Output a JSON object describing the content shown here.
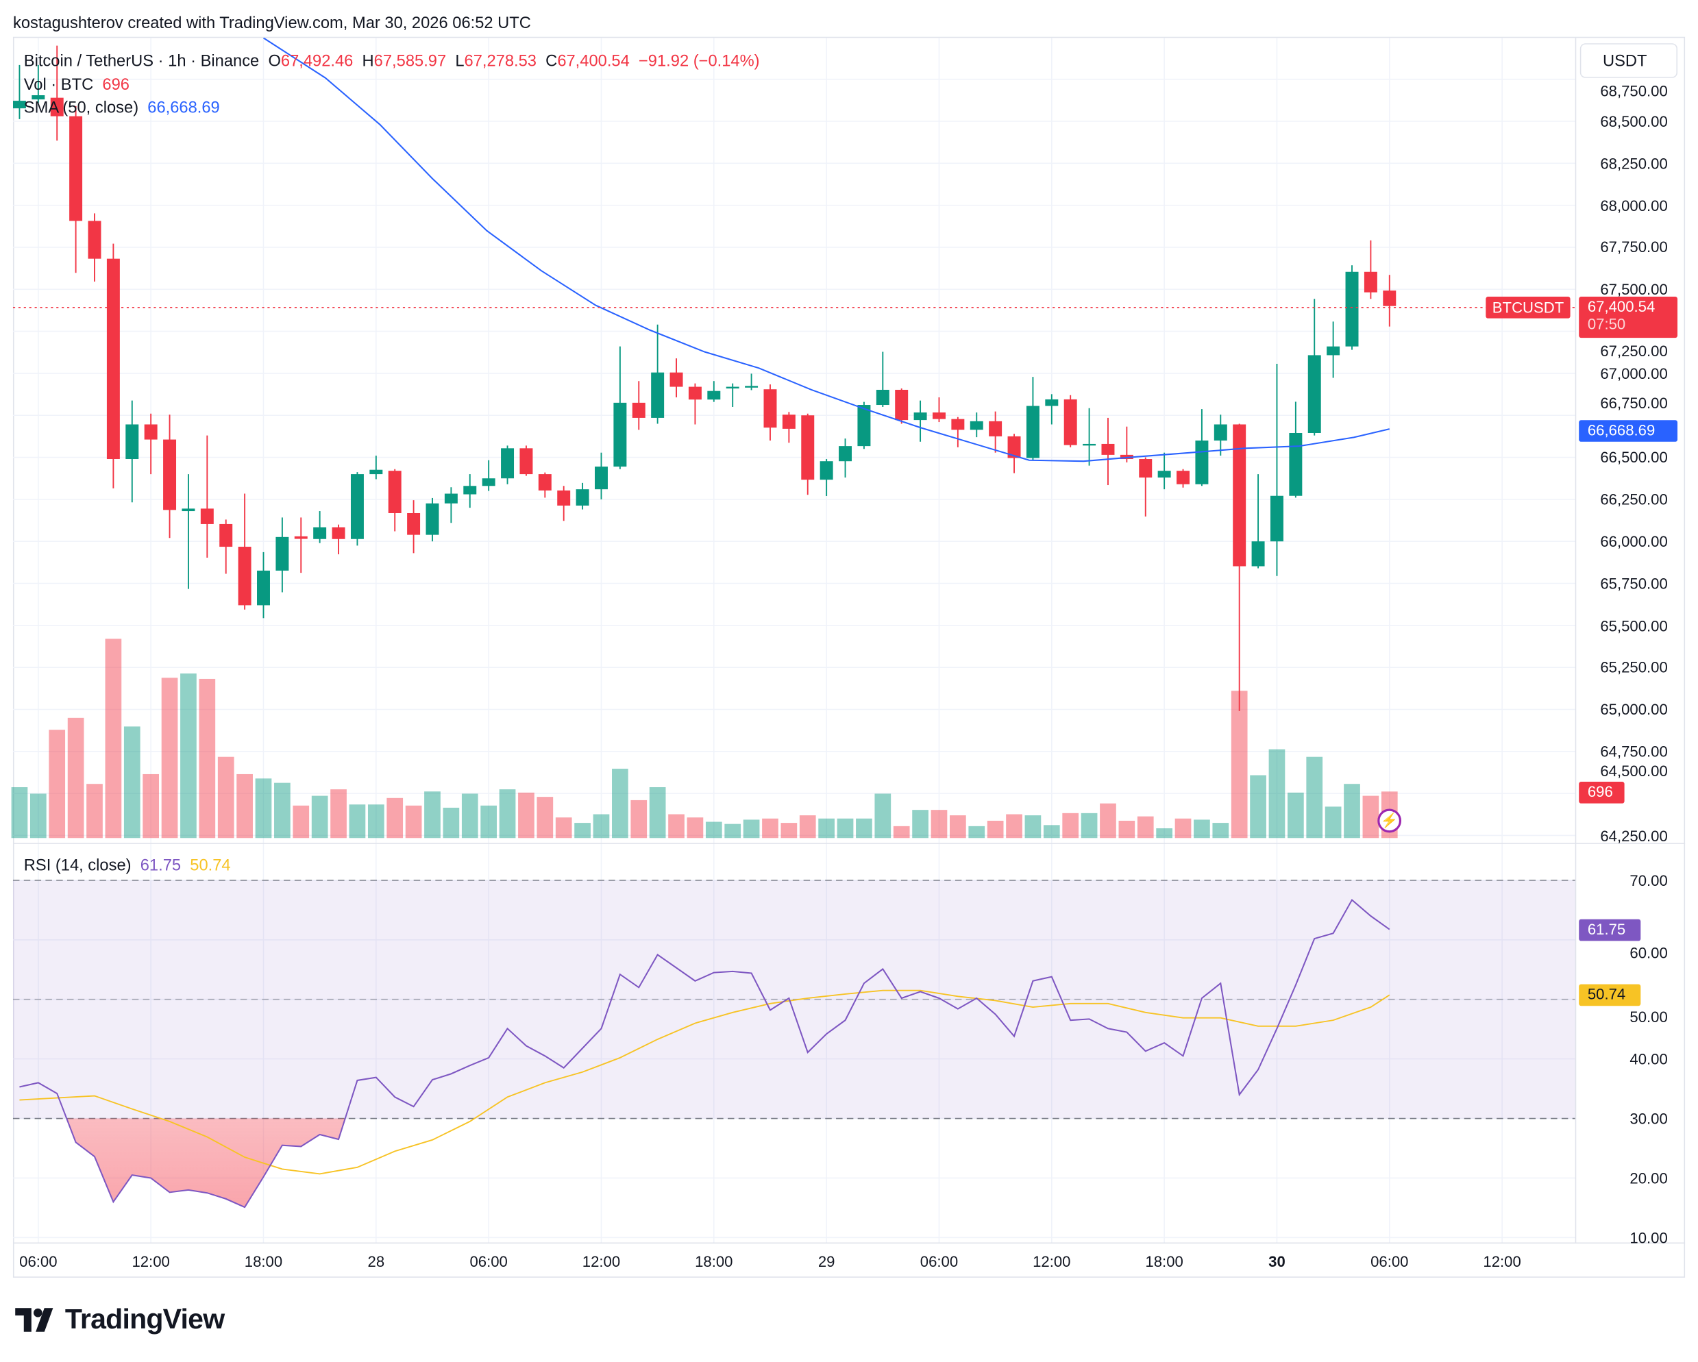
{
  "credit": "kostagushterov created with TradingView.com, Mar 30, 2026 06:52 UTC",
  "symbol_legend": {
    "title": "Bitcoin / TetherUS · 1h · Binance",
    "o_label": "O",
    "o": "67,492.46",
    "h_label": "H",
    "h": "67,585.97",
    "l_label": "L",
    "l": "67,278.53",
    "c_label": "C",
    "c": "67,400.54",
    "change": "−91.92 (−0.14%)"
  },
  "vol_legend": {
    "label": "Vol · BTC",
    "value": "696"
  },
  "sma_legend": {
    "label": "SMA (50, close)",
    "value": "66,668.69"
  },
  "rsi_legend": {
    "label": "RSI (14, close)",
    "value": "61.75",
    "ma_value": "50.74"
  },
  "currency_button": "USDT",
  "price_labels": {
    "symbol": "BTCUSDT",
    "last": "67,400.54",
    "countdown": "07:50",
    "sma": "66,668.69",
    "volume": "696",
    "rsi": "61.75",
    "rsi_ma": "50.74"
  },
  "price_axis": [
    "68,750.00",
    "68,500.00",
    "68,250.00",
    "68,000.00",
    "67,750.00",
    "67,500.00",
    "67,250.00",
    "67,000.00",
    "66,750.00",
    "66,500.00",
    "66,250.00",
    "66,000.00",
    "65,750.00",
    "65,500.00",
    "65,250.00",
    "65,000.00",
    "64,750.00",
    "64,500.00",
    "64,250.00"
  ],
  "rsi_axis": [
    "70.00",
    "60.00",
    "50.00",
    "40.00",
    "30.00",
    "20.00",
    "10.00"
  ],
  "time_axis": [
    {
      "label": "06:00",
      "bold": false
    },
    {
      "label": "12:00",
      "bold": false
    },
    {
      "label": "18:00",
      "bold": false
    },
    {
      "label": "28",
      "bold": false
    },
    {
      "label": "06:00",
      "bold": false
    },
    {
      "label": "12:00",
      "bold": false
    },
    {
      "label": "18:00",
      "bold": false
    },
    {
      "label": "29",
      "bold": false
    },
    {
      "label": "06:00",
      "bold": false
    },
    {
      "label": "12:00",
      "bold": false
    },
    {
      "label": "18:00",
      "bold": false
    },
    {
      "label": "30",
      "bold": true
    },
    {
      "label": "06:00",
      "bold": false
    },
    {
      "label": "12:00",
      "bold": false
    }
  ],
  "logo_text": "TradingView",
  "icons": {
    "alert": "lightning-icon",
    "logo": "tradingview-logo-icon"
  },
  "colors": {
    "up": "#089981",
    "down": "#f23645",
    "sma": "#2962ff",
    "rsi": "#7e57c2",
    "rsi_ma": "#f7c325"
  },
  "chart_data": {
    "type": "candlestick",
    "interval": "1h",
    "first_bar": "Mar 27 05:00",
    "ylim": [
      64250,
      68750
    ],
    "ohlc": [
      [
        68577,
        68835,
        68513,
        68622
      ],
      [
        68630,
        68835,
        68610,
        68655
      ],
      [
        68640,
        68950,
        68385,
        68530
      ],
      [
        68530,
        68590,
        67598,
        67907
      ],
      [
        67907,
        67952,
        67546,
        67682
      ],
      [
        67682,
        67772,
        66316,
        66490
      ],
      [
        66490,
        66838,
        66232,
        66696
      ],
      [
        66696,
        66760,
        66400,
        66606
      ],
      [
        66606,
        66754,
        66020,
        66187
      ],
      [
        66180,
        66400,
        65717,
        66195
      ],
      [
        66195,
        66630,
        65903,
        66103
      ],
      [
        66103,
        66130,
        65807,
        65968
      ],
      [
        65968,
        66284,
        65594,
        65620
      ],
      [
        65620,
        65936,
        65543,
        65826
      ],
      [
        65826,
        66142,
        65697,
        66026
      ],
      [
        66030,
        66142,
        65813,
        66015
      ],
      [
        66014,
        66180,
        65990,
        66084
      ],
      [
        66084,
        66100,
        65923,
        66014
      ],
      [
        66014,
        66412,
        65975,
        66400
      ],
      [
        66400,
        66510,
        66370,
        66426
      ],
      [
        66420,
        66430,
        66060,
        66168
      ],
      [
        66168,
        66245,
        65930,
        66039
      ],
      [
        66039,
        66258,
        66000,
        66226
      ],
      [
        66226,
        66322,
        66110,
        66284
      ],
      [
        66280,
        66400,
        66200,
        66330
      ],
      [
        66330,
        66483,
        66300,
        66375
      ],
      [
        66375,
        66570,
        66340,
        66554
      ],
      [
        66554,
        66570,
        66390,
        66400
      ],
      [
        66400,
        66410,
        66260,
        66303
      ],
      [
        66303,
        66330,
        66122,
        66213
      ],
      [
        66213,
        66348,
        66190,
        66310
      ],
      [
        66310,
        66528,
        66250,
        66445
      ],
      [
        66445,
        67160,
        66430,
        66825
      ],
      [
        66825,
        66954,
        66664,
        66735
      ],
      [
        66735,
        67290,
        66700,
        67005
      ],
      [
        67005,
        67089,
        66857,
        66920
      ],
      [
        66920,
        66940,
        66696,
        66844
      ],
      [
        66844,
        66954,
        66830,
        66895
      ],
      [
        66910,
        66940,
        66800,
        66920
      ],
      [
        66915,
        66998,
        66900,
        66925
      ],
      [
        66905,
        66934,
        66600,
        66677
      ],
      [
        66754,
        66770,
        66587,
        66670
      ],
      [
        66750,
        66760,
        66277,
        66367
      ],
      [
        66367,
        66490,
        66270,
        66477
      ],
      [
        66477,
        66612,
        66380,
        66567
      ],
      [
        66567,
        66830,
        66550,
        66812
      ],
      [
        66812,
        67128,
        66800,
        66902
      ],
      [
        66902,
        66910,
        66700,
        66722
      ],
      [
        66722,
        66838,
        66593,
        66767
      ],
      [
        66767,
        66857,
        66710,
        66728
      ],
      [
        66728,
        66740,
        66560,
        66664
      ],
      [
        66664,
        66767,
        66620,
        66715
      ],
      [
        66715,
        66773,
        66528,
        66625
      ],
      [
        66625,
        66640,
        66406,
        66496
      ],
      [
        66496,
        66979,
        66480,
        66806
      ],
      [
        66806,
        66876,
        66696,
        66845
      ],
      [
        66845,
        66870,
        66560,
        66573
      ],
      [
        66573,
        66793,
        66451,
        66580
      ],
      [
        66580,
        66735,
        66335,
        66515
      ],
      [
        66515,
        66683,
        66470,
        66490
      ],
      [
        66490,
        66500,
        66148,
        66380
      ],
      [
        66380,
        66528,
        66310,
        66420
      ],
      [
        66420,
        66430,
        66320,
        66340
      ],
      [
        66340,
        66787,
        66330,
        66600
      ],
      [
        66600,
        66754,
        66510,
        66696
      ],
      [
        66696,
        66700,
        64990,
        65852
      ],
      [
        65852,
        66400,
        65840,
        66000
      ],
      [
        66000,
        67057,
        65794,
        66271
      ],
      [
        66271,
        66831,
        66260,
        66645
      ],
      [
        66645,
        67443,
        66630,
        67108
      ],
      [
        67108,
        67308,
        66973,
        67160
      ],
      [
        67160,
        67643,
        67140,
        67604
      ],
      [
        67604,
        67791,
        67443,
        67482
      ],
      [
        67492.46,
        67585.97,
        67278.53,
        67400.54
      ]
    ],
    "volume": [
      761,
      664,
      1620,
      1798,
      810,
      2981,
      1669,
      956,
      2398,
      2462,
      2381,
      1215,
      956,
      891,
      826,
      486,
      632,
      729,
      502,
      502,
      599,
      486,
      697,
      454,
      664,
      486,
      729,
      680,
      616,
      308,
      227,
      356,
      1037,
      567,
      761,
      356,
      308,
      243,
      211,
      275,
      292,
      227,
      340,
      292,
      292,
      292,
      664,
      178,
      421,
      421,
      340,
      178,
      259,
      356,
      340,
      194,
      373,
      373,
      518,
      259,
      324,
      146,
      292,
      275,
      227,
      2203,
      940,
      1328,
      680,
      1215,
      470,
      810,
      632,
      696
    ],
    "sma50_points": [
      [
        13,
        68996
      ],
      [
        16.3,
        68758
      ],
      [
        19.2,
        68481
      ],
      [
        22,
        68159
      ],
      [
        24.9,
        67849
      ],
      [
        27.8,
        67611
      ],
      [
        30.7,
        67405
      ],
      [
        33.6,
        67257
      ],
      [
        36.5,
        67128
      ],
      [
        39.4,
        67031
      ],
      [
        42.2,
        66902
      ],
      [
        45.1,
        66786
      ],
      [
        48,
        66677
      ],
      [
        50.9,
        66580
      ],
      [
        53.8,
        66483
      ],
      [
        56.7,
        66477
      ],
      [
        59.5,
        66503
      ],
      [
        62.4,
        66528
      ],
      [
        65.3,
        66554
      ],
      [
        68.2,
        66567
      ],
      [
        71.1,
        66619
      ],
      [
        73,
        66668.69
      ]
    ],
    "rsi": [
      35.3,
      36.0,
      34.2,
      26.0,
      23.6,
      16.0,
      20.5,
      20.0,
      17.6,
      18.0,
      17.5,
      16.5,
      15.1,
      20.2,
      25.5,
      25.3,
      27.3,
      26.5,
      36.4,
      36.9,
      33.6,
      32.0,
      36.5,
      37.5,
      38.9,
      40.2,
      45.1,
      42.2,
      40.5,
      38.5,
      41.8,
      45.1,
      54.2,
      52.0,
      57.5,
      55.3,
      53.1,
      54.5,
      54.7,
      54.4,
      48.2,
      50.2,
      41.1,
      44.2,
      46.5,
      52.7,
      55.1,
      50.2,
      51.3,
      50.2,
      48.4,
      50.2,
      47.5,
      43.8,
      53.1,
      53.8,
      46.5,
      46.7,
      45.1,
      44.5,
      41.3,
      42.7,
      40.5,
      50.2,
      52.7,
      34.0,
      38.2,
      45.1,
      52.4,
      60.2,
      61.1,
      66.7,
      64.0,
      61.75
    ],
    "rsi_ma_points": [
      [
        0,
        33.1
      ],
      [
        4,
        33.8
      ],
      [
        6,
        31.6
      ],
      [
        8,
        29.5
      ],
      [
        10,
        26.9
      ],
      [
        12,
        23.5
      ],
      [
        14,
        21.5
      ],
      [
        16,
        20.7
      ],
      [
        18,
        21.8
      ],
      [
        20,
        24.5
      ],
      [
        22,
        26.4
      ],
      [
        24,
        29.5
      ],
      [
        26,
        33.6
      ],
      [
        28,
        36.0
      ],
      [
        30,
        37.8
      ],
      [
        32,
        40.2
      ],
      [
        34,
        43.3
      ],
      [
        36,
        46.0
      ],
      [
        38,
        47.8
      ],
      [
        40,
        49.3
      ],
      [
        42,
        50.2
      ],
      [
        44,
        50.9
      ],
      [
        46,
        51.5
      ],
      [
        48,
        51.5
      ],
      [
        50,
        50.5
      ],
      [
        52,
        49.8
      ],
      [
        54,
        48.7
      ],
      [
        56,
        49.3
      ],
      [
        58,
        49.3
      ],
      [
        60,
        47.8
      ],
      [
        62,
        46.9
      ],
      [
        64,
        46.9
      ],
      [
        66,
        45.5
      ],
      [
        68,
        45.5
      ],
      [
        70,
        46.5
      ],
      [
        72,
        48.7
      ],
      [
        73,
        50.74
      ]
    ],
    "rsi_bands": [
      30,
      70
    ],
    "rsi_ylim": [
      10,
      70
    ],
    "grid": true
  }
}
